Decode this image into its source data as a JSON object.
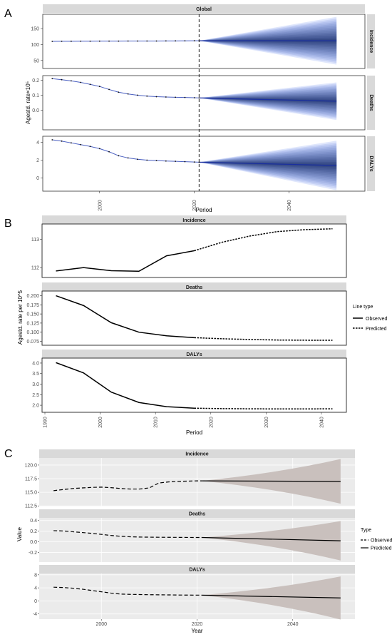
{
  "figure": {
    "A": {
      "letter": "A",
      "top_strip": "Global",
      "ylabel": "Agestd. rate×10⁵",
      "xlabel": "Period",
      "xticks": [
        2000,
        2020,
        2040
      ],
      "xlim": [
        1988,
        2056
      ],
      "vline_x": 2021,
      "forecast_end": 2050,
      "observed_x": [
        1990,
        1992,
        1994,
        1996,
        1998,
        2000,
        2002,
        2004,
        2006,
        2008,
        2010,
        2012,
        2014,
        2016,
        2018,
        2020,
        2021
      ],
      "panels": [
        {
          "name": "Incidence",
          "ylim": [
            25,
            195
          ],
          "yticks": [
            50,
            100,
            150
          ],
          "observed_y": [
            110,
            110.2,
            110.4,
            110.5,
            110.6,
            110.7,
            110.8,
            110.9,
            111,
            111,
            111.1,
            111.2,
            111.4,
            111.5,
            111.7,
            111.9,
            112
          ],
          "center_start": 112,
          "center_end": 112,
          "spread_end": 75
        },
        {
          "name": "Deaths",
          "ylim": [
            -0.13,
            0.23
          ],
          "yticks": [
            0.0,
            0.1,
            0.2
          ],
          "observed_y": [
            0.21,
            0.203,
            0.195,
            0.185,
            0.172,
            0.158,
            0.138,
            0.12,
            0.108,
            0.1,
            0.094,
            0.09,
            0.088,
            0.086,
            0.085,
            0.083,
            0.082
          ],
          "center_start": 0.082,
          "center_end": 0.06,
          "spread_end": 0.125
        },
        {
          "name": "DALYs",
          "ylim": [
            -1.5,
            4.7
          ],
          "yticks": [
            0,
            2,
            4
          ],
          "observed_y": [
            4.3,
            4.15,
            3.95,
            3.75,
            3.55,
            3.3,
            2.95,
            2.5,
            2.25,
            2.1,
            2.0,
            1.95,
            1.9,
            1.87,
            1.83,
            1.79,
            1.77
          ],
          "center_start": 1.77,
          "center_end": 1.4,
          "spread_end": 2.8
        }
      ]
    },
    "B": {
      "letter": "B",
      "ylabel": "Agestd. rate per 10^5",
      "xlabel": "Period",
      "xticks": [
        1990,
        2000,
        2010,
        2020,
        2030,
        2040
      ],
      "xlim": [
        1990,
        2044
      ],
      "legend": {
        "title": "Line type",
        "entries": [
          "Observed",
          "Predicted"
        ]
      },
      "panels": [
        {
          "name": "Incidence",
          "ylim": [
            111.75,
            113.45
          ],
          "yticks": [
            112,
            113
          ],
          "observed": {
            "x": [
              1992,
              1997,
              2002,
              2007,
              2012,
              2017
            ],
            "y": [
              111.88,
              112.0,
              111.89,
              111.87,
              112.42,
              112.6
            ]
          },
          "predicted": {
            "x": [
              2017,
              2022,
              2027,
              2032,
              2037,
              2042
            ],
            "y": [
              112.6,
              112.9,
              113.12,
              113.28,
              113.35,
              113.38
            ]
          }
        },
        {
          "name": "Deaths",
          "ylim": [
            0.072,
            0.205
          ],
          "yticks": [
            0.075,
            0.1,
            0.125,
            0.15,
            0.175,
            0.2
          ],
          "observed": {
            "x": [
              1992,
              1997,
              2002,
              2007,
              2012,
              2017
            ],
            "y": [
              0.2,
              0.173,
              0.126,
              0.1,
              0.09,
              0.085
            ]
          },
          "predicted": {
            "x": [
              2017,
              2022,
              2027,
              2032,
              2037,
              2042
            ],
            "y": [
              0.085,
              0.082,
              0.08,
              0.0785,
              0.078,
              0.0778
            ]
          }
        },
        {
          "name": "DALYs",
          "ylim": [
            1.8,
            4.1
          ],
          "yticks": [
            2.0,
            2.5,
            3.0,
            3.5,
            4.0
          ],
          "observed": {
            "x": [
              1992,
              1997,
              2002,
              2007,
              2012,
              2017
            ],
            "y": [
              4.02,
              3.53,
              2.62,
              2.13,
              1.93,
              1.86
            ]
          },
          "predicted": {
            "x": [
              2017,
              2022,
              2027,
              2032,
              2037,
              2042
            ],
            "y": [
              1.86,
              1.84,
              1.83,
              1.825,
              1.825,
              1.83
            ]
          }
        }
      ]
    },
    "C": {
      "letter": "C",
      "ylabel": "Value",
      "xlabel": "Year",
      "xticks": [
        2000,
        2020,
        2040
      ],
      "xlim": [
        1987,
        2053
      ],
      "forecast_start": 2021,
      "forecast_end": 2050,
      "legend": {
        "title": "Type",
        "entries": [
          "Observed",
          "Predicted"
        ]
      },
      "observed_x": [
        1990,
        1992,
        1994,
        1996,
        1998,
        2000,
        2002,
        2004,
        2006,
        2008,
        2010,
        2012,
        2014,
        2016,
        2018,
        2020,
        2021
      ],
      "panels": [
        {
          "name": "Incidence",
          "ylim": [
            112.4,
            121.3
          ],
          "yticks": [
            112.5,
            115.0,
            117.5,
            120.0
          ],
          "observed_y": [
            115.3,
            115.5,
            115.7,
            115.8,
            115.9,
            115.95,
            115.85,
            115.7,
            115.6,
            115.6,
            115.8,
            116.7,
            116.9,
            117.0,
            117.05,
            117.1,
            117.1
          ],
          "center_start": 117.1,
          "center_end": 117.0,
          "spread_end": 4.1
        },
        {
          "name": "Deaths",
          "ylim": [
            -0.38,
            0.45
          ],
          "yticks": [
            -0.2,
            0.0,
            0.2,
            0.4
          ],
          "observed_y": [
            0.21,
            0.205,
            0.19,
            0.175,
            0.16,
            0.14,
            0.12,
            0.105,
            0.095,
            0.09,
            0.088,
            0.086,
            0.085,
            0.084,
            0.083,
            0.082,
            0.082
          ],
          "center_start": 0.082,
          "center_end": 0.02,
          "spread_end": 0.37
        },
        {
          "name": "DALYs",
          "ylim": [
            -5.6,
            8.4
          ],
          "yticks": [
            -4,
            0,
            4,
            8
          ],
          "observed_y": [
            4.2,
            4.1,
            3.9,
            3.6,
            3.2,
            2.8,
            2.4,
            2.1,
            2.0,
            1.95,
            1.9,
            1.87,
            1.84,
            1.8,
            1.78,
            1.77,
            1.76
          ],
          "center_start": 1.76,
          "center_end": 0.9,
          "spread_end": 6.6
        }
      ]
    }
  }
}
